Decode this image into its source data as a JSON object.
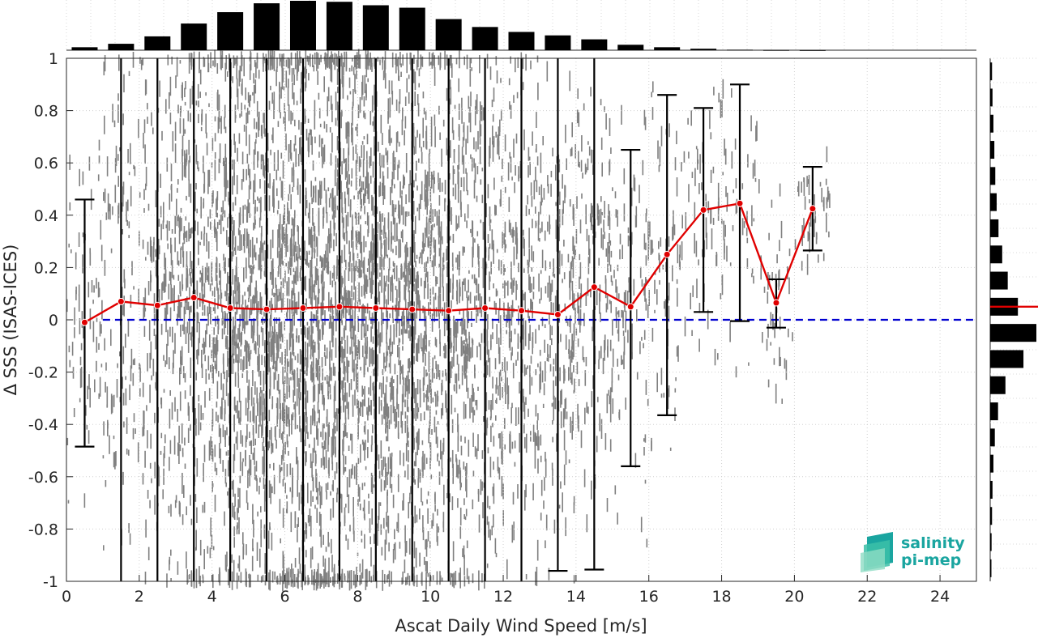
{
  "chart_data": {
    "type": "scatter",
    "title": "",
    "xlabel": "Ascat Daily Wind Speed [m/s]",
    "ylabel": "Δ SSS (ISAS-ICES)",
    "xlim": [
      0,
      25
    ],
    "ylim": [
      -1,
      1
    ],
    "xticks": [
      0,
      2,
      4,
      6,
      8,
      10,
      12,
      14,
      16,
      18,
      20,
      22,
      24
    ],
    "yticks": [
      1,
      0.8,
      0.6,
      0.4,
      0.2,
      0,
      -0.2,
      -0.4,
      -0.6,
      -0.8,
      -1
    ],
    "ytick_labels": [
      "1",
      "0.8",
      "0.6",
      "0.4",
      "0.2",
      "0",
      "-0.2",
      "-0.4",
      "-0.6",
      "-0.8",
      "-1"
    ],
    "grid": true,
    "zero_line": 0,
    "bin_means": {
      "name": "",
      "color": "#e00000",
      "x": [
        0.5,
        1.5,
        2.5,
        3.5,
        4.5,
        5.5,
        6.5,
        7.5,
        8.5,
        9.5,
        10.5,
        11.5,
        12.5,
        13.5,
        14.5,
        15.5,
        16.5,
        17.5,
        18.5,
        19.5,
        20.5
      ],
      "y": [
        -0.01,
        0.07,
        0.055,
        0.085,
        0.045,
        0.04,
        0.045,
        0.05,
        0.045,
        0.04,
        0.035,
        0.045,
        0.035,
        0.02,
        0.125,
        0.05,
        0.25,
        0.42,
        0.445,
        0.065,
        0.425
      ]
    },
    "error_bars": {
      "color": "#000000",
      "lower": [
        -0.485,
        -1.0,
        -1.0,
        -1.0,
        -1.0,
        -1.0,
        -1.0,
        -1.0,
        -1.0,
        -1.0,
        -1.0,
        -1.0,
        -1.0,
        -0.96,
        -0.955,
        -0.56,
        -0.365,
        0.03,
        -0.005,
        -0.03,
        0.265
      ],
      "upper": [
        0.46,
        1.0,
        1.0,
        1.0,
        1.0,
        1.0,
        1.0,
        1.0,
        1.0,
        1.0,
        1.0,
        1.0,
        1.0,
        1.0,
        1.0,
        0.65,
        0.86,
        0.81,
        0.9,
        0.155,
        0.585
      ]
    },
    "top_histogram": {
      "bin_centers": [
        0.5,
        1.5,
        2.5,
        3.5,
        4.5,
        5.5,
        6.5,
        7.5,
        8.5,
        9.5,
        10.5,
        11.5,
        12.5,
        13.5,
        14.5,
        15.5,
        16.5,
        17.5,
        18.5,
        19.5,
        20.5
      ],
      "counts": [
        0.06,
        0.13,
        0.28,
        0.54,
        0.77,
        0.95,
        1.0,
        0.98,
        0.91,
        0.86,
        0.63,
        0.47,
        0.37,
        0.3,
        0.22,
        0.11,
        0.06,
        0.03,
        0.01,
        0.005,
        0.003
      ]
    },
    "right_histogram": {
      "bin_centers": [
        0.95,
        0.85,
        0.75,
        0.65,
        0.55,
        0.45,
        0.35,
        0.25,
        0.15,
        0.05,
        -0.05,
        -0.15,
        -0.25,
        -0.35,
        -0.45,
        -0.55,
        -0.65,
        -0.75,
        -0.85,
        -0.95
      ],
      "counts": [
        0.04,
        0.05,
        0.07,
        0.09,
        0.11,
        0.14,
        0.18,
        0.26,
        0.38,
        0.6,
        1.0,
        0.72,
        0.33,
        0.17,
        0.1,
        0.07,
        0.05,
        0.04,
        0.03,
        0.02
      ],
      "mean_marker": 0.05,
      "mean_color": "#e00000"
    }
  },
  "logo": {
    "line1": "salinity",
    "line2": "pi-mep",
    "color": "#1aa5a0"
  }
}
